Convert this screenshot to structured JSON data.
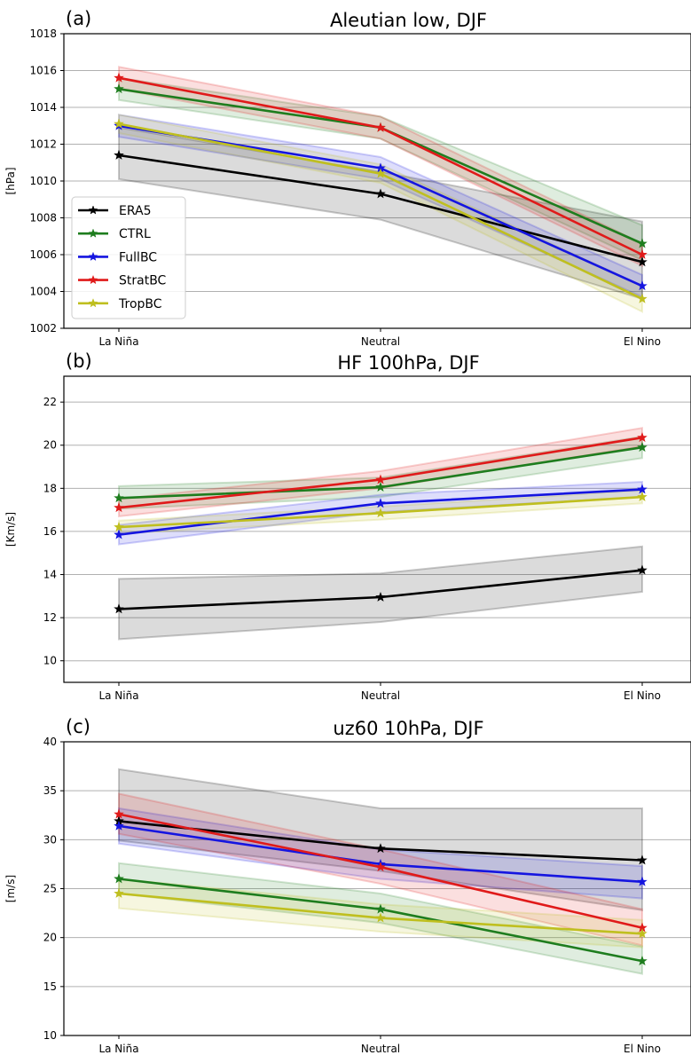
{
  "chart_data": [
    {
      "type": "line",
      "panel_label": "(a)",
      "title": "Aleutian low, DJF",
      "xlabel": "",
      "ylabel": "[hPa]",
      "categories": [
        "La Niña",
        "Neutral",
        "El Nino"
      ],
      "ylim": [
        1002,
        1018
      ],
      "yticks": [
        1002,
        1004,
        1006,
        1008,
        1010,
        1012,
        1014,
        1016,
        1018
      ],
      "grid": "horizontal",
      "legend": {
        "placement": "lower-left",
        "entries": [
          "ERA5",
          "CTRL",
          "FullBC",
          "StratBC",
          "TropBC"
        ]
      },
      "series": [
        {
          "name": "ERA5",
          "color": "#000000",
          "values": [
            1011.4,
            1009.3,
            1005.6
          ],
          "lower": [
            1010.1,
            1007.9,
            1003.6
          ],
          "upper": [
            1012.9,
            1010.5,
            1007.8
          ]
        },
        {
          "name": "CTRL",
          "color": "#1e7d1e",
          "values": [
            1015.0,
            1012.9,
            1006.6
          ],
          "lower": [
            1014.4,
            1012.3,
            1005.7
          ],
          "upper": [
            1015.6,
            1013.5,
            1007.6
          ]
        },
        {
          "name": "FullBC",
          "color": "#1515e0",
          "values": [
            1013.0,
            1010.7,
            1004.3
          ],
          "lower": [
            1012.4,
            1010.1,
            1003.7
          ],
          "upper": [
            1013.6,
            1011.3,
            1004.9
          ]
        },
        {
          "name": "StratBC",
          "color": "#e01a1a",
          "values": [
            1015.6,
            1012.9,
            1006.0
          ],
          "lower": [
            1015.0,
            1012.3,
            1005.4
          ],
          "upper": [
            1016.2,
            1013.5,
            1006.6
          ]
        },
        {
          "name": "TropBC",
          "color": "#bfbf1f",
          "values": [
            1013.1,
            1010.4,
            1003.6
          ],
          "lower": [
            1012.6,
            1009.9,
            1002.9
          ],
          "upper": [
            1013.6,
            1010.9,
            1004.3
          ]
        }
      ]
    },
    {
      "type": "line",
      "panel_label": "(b)",
      "title": "HF 100hPa, DJF",
      "xlabel": "",
      "ylabel": "[Km/s]",
      "categories": [
        "La Niña",
        "Neutral",
        "El Nino"
      ],
      "ylim": [
        9,
        23.2
      ],
      "yticks": [
        10,
        12,
        14,
        16,
        18,
        20,
        22
      ],
      "grid": "horizontal",
      "series": [
        {
          "name": "ERA5",
          "color": "#000000",
          "values": [
            12.4,
            12.95,
            14.2
          ],
          "lower": [
            11.0,
            11.8,
            13.2
          ],
          "upper": [
            13.8,
            14.05,
            15.3
          ]
        },
        {
          "name": "CTRL",
          "color": "#1e7d1e",
          "values": [
            17.55,
            18.05,
            19.9
          ],
          "lower": [
            17.05,
            17.6,
            19.4
          ],
          "upper": [
            18.1,
            18.5,
            20.4
          ]
        },
        {
          "name": "FullBC",
          "color": "#1515e0",
          "values": [
            15.85,
            17.3,
            17.95
          ],
          "lower": [
            15.4,
            16.9,
            17.6
          ],
          "upper": [
            16.3,
            17.7,
            18.3
          ]
        },
        {
          "name": "StratBC",
          "color": "#e01a1a",
          "values": [
            17.1,
            18.4,
            20.35
          ],
          "lower": [
            16.7,
            18.0,
            19.95
          ],
          "upper": [
            17.5,
            18.8,
            20.8
          ]
        },
        {
          "name": "TropBC",
          "color": "#bfbf1f",
          "values": [
            16.2,
            16.85,
            17.6
          ],
          "lower": [
            15.9,
            16.55,
            17.3
          ],
          "upper": [
            16.5,
            17.15,
            17.9
          ]
        }
      ]
    },
    {
      "type": "line",
      "panel_label": "(c)",
      "title": "uz60 10hPa, DJF",
      "xlabel": "",
      "ylabel": "[m/s]",
      "categories": [
        "La Niña",
        "Neutral",
        "El Nino"
      ],
      "ylim": [
        10,
        40
      ],
      "yticks": [
        10,
        15,
        20,
        25,
        30,
        35,
        40
      ],
      "grid": "horizontal",
      "series": [
        {
          "name": "ERA5",
          "color": "#000000",
          "values": [
            31.9,
            29.1,
            27.9
          ],
          "lower": [
            29.9,
            26.8,
            22.8
          ],
          "upper": [
            37.2,
            33.2,
            33.2
          ]
        },
        {
          "name": "CTRL",
          "color": "#1e7d1e",
          "values": [
            26.0,
            22.9,
            17.6
          ],
          "lower": [
            24.5,
            21.5,
            16.3
          ],
          "upper": [
            27.6,
            24.5,
            19.1
          ]
        },
        {
          "name": "FullBC",
          "color": "#1515e0",
          "values": [
            31.4,
            27.5,
            25.7
          ],
          "lower": [
            29.6,
            26.0,
            24.0
          ],
          "upper": [
            33.2,
            29.0,
            27.3
          ]
        },
        {
          "name": "StratBC",
          "color": "#e01a1a",
          "values": [
            32.6,
            27.2,
            21.0
          ],
          "lower": [
            30.6,
            25.5,
            19.2
          ],
          "upper": [
            34.7,
            29.0,
            22.9
          ]
        },
        {
          "name": "TropBC",
          "color": "#bfbf1f",
          "values": [
            24.5,
            22.0,
            20.4
          ],
          "lower": [
            23.0,
            20.6,
            19.0
          ],
          "upper": [
            26.0,
            23.4,
            21.8
          ]
        }
      ]
    }
  ]
}
